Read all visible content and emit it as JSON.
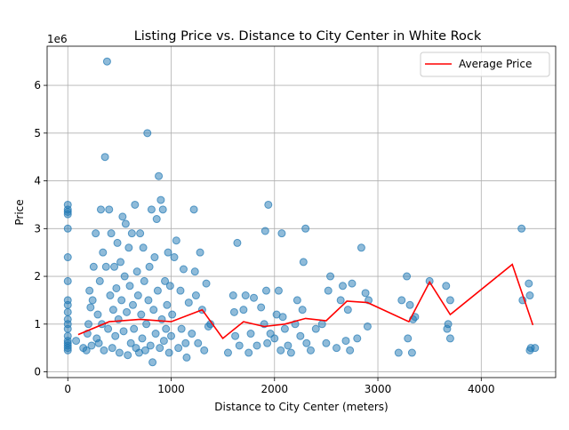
{
  "chart_data": {
    "type": "scatter",
    "title": "Listing Price vs. Distance to City Center in White Rock",
    "xlabel": "Distance to City Center (meters)",
    "ylabel": "Price",
    "y_offset_label": "1e6",
    "xlim": [
      -200,
      4720
    ],
    "ylim": [
      -0.12,
      6.82
    ],
    "x_ticks": [
      0,
      1000,
      2000,
      3000,
      4000
    ],
    "x_tick_labels": [
      "0",
      "1000",
      "2000",
      "3000",
      "4000"
    ],
    "y_ticks": [
      0,
      1,
      2,
      3,
      4,
      5,
      6
    ],
    "y_tick_labels": [
      "0",
      "1",
      "2",
      "3",
      "4",
      "5",
      "6"
    ],
    "grid": true,
    "legend": {
      "position": "top-right",
      "entries": [
        "Average Price"
      ]
    },
    "colors": {
      "points": "#1f77b4",
      "average_line": "#ff0000"
    },
    "series": [
      {
        "kind": "points",
        "values": [
          [
            0,
            0.45
          ],
          [
            0,
            0.5
          ],
          [
            0,
            0.55
          ],
          [
            0,
            0.6
          ],
          [
            0,
            0.65
          ],
          [
            0,
            0.75
          ],
          [
            0,
            0.9
          ],
          [
            0,
            1.0
          ],
          [
            0,
            1.1
          ],
          [
            0,
            1.25
          ],
          [
            0,
            1.4
          ],
          [
            0,
            1.5
          ],
          [
            0,
            1.9
          ],
          [
            0,
            2.4
          ],
          [
            0,
            3.0
          ],
          [
            0,
            3.3
          ],
          [
            0,
            3.35
          ],
          [
            0,
            3.4
          ],
          [
            0,
            3.5
          ],
          [
            80,
            0.65
          ],
          [
            150,
            0.5
          ],
          [
            180,
            0.45
          ],
          [
            190,
            0.8
          ],
          [
            200,
            1.0
          ],
          [
            210,
            1.7
          ],
          [
            220,
            1.35
          ],
          [
            230,
            0.55
          ],
          [
            240,
            1.5
          ],
          [
            250,
            2.2
          ],
          [
            270,
            2.9
          ],
          [
            280,
            0.7
          ],
          [
            290,
            1.2
          ],
          [
            300,
            0.6
          ],
          [
            310,
            1.9
          ],
          [
            320,
            3.4
          ],
          [
            330,
            1.0
          ],
          [
            340,
            2.5
          ],
          [
            350,
            0.45
          ],
          [
            360,
            4.5
          ],
          [
            370,
            2.2
          ],
          [
            380,
            6.5
          ],
          [
            390,
            0.9
          ],
          [
            400,
            3.4
          ],
          [
            410,
            1.6
          ],
          [
            420,
            2.9
          ],
          [
            430,
            0.5
          ],
          [
            440,
            1.3
          ],
          [
            450,
            2.2
          ],
          [
            460,
            0.75
          ],
          [
            470,
            1.75
          ],
          [
            480,
            2.7
          ],
          [
            490,
            1.1
          ],
          [
            500,
            0.4
          ],
          [
            510,
            2.3
          ],
          [
            520,
            1.5
          ],
          [
            530,
            3.25
          ],
          [
            540,
            0.85
          ],
          [
            550,
            2.0
          ],
          [
            560,
            3.1
          ],
          [
            570,
            1.25
          ],
          [
            580,
            0.35
          ],
          [
            590,
            2.6
          ],
          [
            600,
            1.8
          ],
          [
            610,
            0.6
          ],
          [
            620,
            2.9
          ],
          [
            630,
            1.4
          ],
          [
            640,
            0.9
          ],
          [
            650,
            3.5
          ],
          [
            660,
            0.5
          ],
          [
            670,
            2.1
          ],
          [
            680,
            1.6
          ],
          [
            690,
            0.4
          ],
          [
            700,
            2.9
          ],
          [
            710,
            1.2
          ],
          [
            720,
            0.7
          ],
          [
            730,
            2.6
          ],
          [
            740,
            1.9
          ],
          [
            750,
            0.45
          ],
          [
            760,
            1.0
          ],
          [
            770,
            5.0
          ],
          [
            780,
            1.5
          ],
          [
            790,
            2.2
          ],
          [
            800,
            0.55
          ],
          [
            810,
            3.4
          ],
          [
            820,
            0.2
          ],
          [
            830,
            1.3
          ],
          [
            840,
            2.4
          ],
          [
            850,
            0.8
          ],
          [
            860,
            3.2
          ],
          [
            870,
            1.7
          ],
          [
            880,
            4.1
          ],
          [
            890,
            0.5
          ],
          [
            900,
            3.6
          ],
          [
            910,
            1.1
          ],
          [
            920,
            3.4
          ],
          [
            930,
            0.65
          ],
          [
            940,
            1.9
          ],
          [
            950,
            0.9
          ],
          [
            960,
            1.4
          ],
          [
            970,
            2.5
          ],
          [
            980,
            0.4
          ],
          [
            990,
            1.8
          ],
          [
            1000,
            0.75
          ],
          [
            1010,
            1.2
          ],
          [
            1030,
            2.4
          ],
          [
            1050,
            2.75
          ],
          [
            1070,
            0.5
          ],
          [
            1090,
            1.7
          ],
          [
            1100,
            0.9
          ],
          [
            1120,
            2.15
          ],
          [
            1140,
            0.6
          ],
          [
            1150,
            0.3
          ],
          [
            1170,
            1.45
          ],
          [
            1200,
            0.8
          ],
          [
            1220,
            3.4
          ],
          [
            1230,
            2.1
          ],
          [
            1240,
            1.6
          ],
          [
            1260,
            0.6
          ],
          [
            1280,
            2.5
          ],
          [
            1300,
            1.3
          ],
          [
            1320,
            0.45
          ],
          [
            1340,
            1.85
          ],
          [
            1360,
            0.95
          ],
          [
            1380,
            1.0
          ],
          [
            1550,
            0.4
          ],
          [
            1600,
            1.6
          ],
          [
            1610,
            1.25
          ],
          [
            1620,
            0.75
          ],
          [
            1640,
            2.7
          ],
          [
            1660,
            0.55
          ],
          [
            1700,
            1.3
          ],
          [
            1720,
            1.6
          ],
          [
            1750,
            0.4
          ],
          [
            1770,
            0.8
          ],
          [
            1800,
            1.55
          ],
          [
            1830,
            0.55
          ],
          [
            1870,
            1.35
          ],
          [
            1900,
            1.0
          ],
          [
            1910,
            2.95
          ],
          [
            1920,
            1.7
          ],
          [
            1930,
            0.6
          ],
          [
            1940,
            3.5
          ],
          [
            1960,
            0.8
          ],
          [
            2000,
            0.7
          ],
          [
            2020,
            1.2
          ],
          [
            2040,
            1.7
          ],
          [
            2060,
            0.45
          ],
          [
            2070,
            2.9
          ],
          [
            2080,
            1.15
          ],
          [
            2100,
            0.9
          ],
          [
            2130,
            0.55
          ],
          [
            2160,
            0.4
          ],
          [
            2200,
            1.0
          ],
          [
            2220,
            1.5
          ],
          [
            2250,
            0.75
          ],
          [
            2270,
            1.3
          ],
          [
            2280,
            2.3
          ],
          [
            2300,
            3.0
          ],
          [
            2310,
            0.6
          ],
          [
            2350,
            0.45
          ],
          [
            2400,
            0.9
          ],
          [
            2460,
            1.0
          ],
          [
            2500,
            0.6
          ],
          [
            2520,
            1.7
          ],
          [
            2540,
            2.0
          ],
          [
            2600,
            0.5
          ],
          [
            2640,
            1.5
          ],
          [
            2660,
            1.8
          ],
          [
            2690,
            0.65
          ],
          [
            2710,
            1.3
          ],
          [
            2730,
            0.45
          ],
          [
            2750,
            1.85
          ],
          [
            2800,
            0.7
          ],
          [
            2840,
            2.6
          ],
          [
            2880,
            1.65
          ],
          [
            2900,
            0.95
          ],
          [
            2910,
            1.5
          ],
          [
            3200,
            0.4
          ],
          [
            3230,
            1.5
          ],
          [
            3280,
            2.0
          ],
          [
            3290,
            0.7
          ],
          [
            3310,
            1.4
          ],
          [
            3330,
            0.4
          ],
          [
            3340,
            1.1
          ],
          [
            3360,
            1.15
          ],
          [
            3500,
            1.9
          ],
          [
            3660,
            1.8
          ],
          [
            3670,
            0.9
          ],
          [
            3680,
            1.0
          ],
          [
            3700,
            1.5
          ],
          [
            3700,
            0.7
          ],
          [
            4390,
            3.0
          ],
          [
            4400,
            1.5
          ],
          [
            4460,
            1.85
          ],
          [
            4470,
            1.6
          ],
          [
            4480,
            0.5
          ],
          [
            4470,
            0.45
          ],
          [
            4520,
            0.5
          ]
        ]
      },
      {
        "kind": "line",
        "name": "Average Price",
        "values": [
          [
            100,
            0.78
          ],
          [
            400,
            1.05
          ],
          [
            700,
            1.1
          ],
          [
            1000,
            1.05
          ],
          [
            1300,
            1.3
          ],
          [
            1500,
            0.7
          ],
          [
            1700,
            1.05
          ],
          [
            1900,
            0.95
          ],
          [
            2100,
            1.0
          ],
          [
            2300,
            1.12
          ],
          [
            2500,
            1.07
          ],
          [
            2700,
            1.48
          ],
          [
            2900,
            1.45
          ],
          [
            3300,
            1.05
          ],
          [
            3500,
            1.88
          ],
          [
            3700,
            1.2
          ],
          [
            4300,
            2.25
          ],
          [
            4500,
            0.98
          ]
        ]
      }
    ]
  }
}
